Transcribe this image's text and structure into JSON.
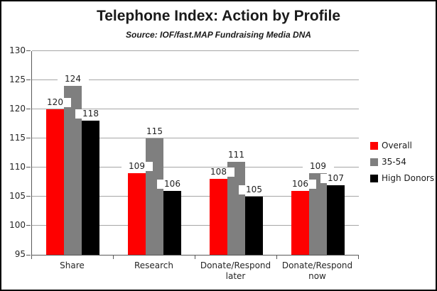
{
  "chart": {
    "title": "Telephone Index: Action by Profile",
    "subtitle": "Source: IOF/fast.MAP Fundraising Media DNA"
  },
  "chart_data": {
    "type": "bar",
    "title": "Telephone Index: Action by Profile",
    "subtitle": "Source: IOF/fast.MAP Fundraising Media DNA",
    "categories": [
      "Share",
      "Research",
      "Donate/Respond later",
      "Donate/Respond now"
    ],
    "series": [
      {
        "name": "Overall",
        "color": "#fe0000",
        "values": [
          120,
          109,
          108,
          106
        ]
      },
      {
        "name": "35-54",
        "color": "#7f7f7f",
        "values": [
          124,
          115,
          111,
          109
        ]
      },
      {
        "name": "High Donors",
        "color": "#000000",
        "values": [
          118,
          106,
          105,
          107
        ]
      }
    ],
    "xlabel": "",
    "ylabel": "",
    "ylim": [
      95,
      130
    ],
    "ytick_step": 5,
    "yticks": [
      95,
      100,
      105,
      110,
      115,
      120,
      125,
      130
    ],
    "grid": true,
    "data_labels": true,
    "legend_position": "right",
    "colors": {
      "gridline": "#a6a6a6",
      "axis": "#595959",
      "text": "#1a1a1a",
      "background": "#ffffff",
      "border": "#000000"
    }
  }
}
